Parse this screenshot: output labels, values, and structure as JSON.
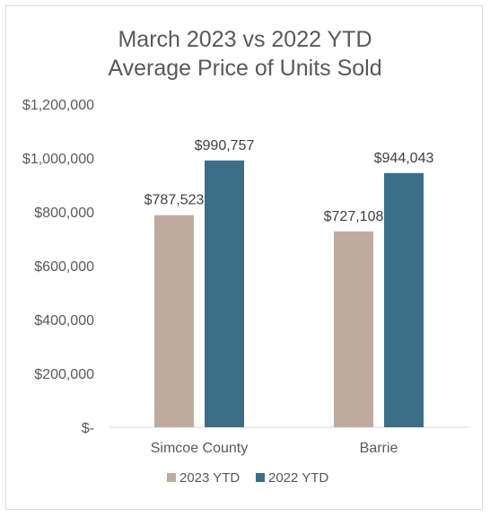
{
  "chart_data": {
    "type": "bar",
    "title_line1": "March 2023 vs 2022 YTD",
    "title_line2": "Average Price of Units Sold",
    "categories": [
      "Simcoe County",
      "Barrie"
    ],
    "series": [
      {
        "name": "2023 YTD",
        "color": "#bfab9e",
        "values": [
          787523,
          727108
        ],
        "labels": [
          "$787,523",
          "$727,108"
        ]
      },
      {
        "name": "2022 YTD",
        "color": "#3b6f88",
        "values": [
          990757,
          944043
        ],
        "labels": [
          "$990,757",
          "$944,043"
        ]
      }
    ],
    "ylim": [
      0,
      1200000
    ],
    "yticks": [
      0,
      200000,
      400000,
      600000,
      800000,
      1000000,
      1200000
    ],
    "ytick_labels": [
      "$-",
      "$200,000",
      "$400,000",
      "$600,000",
      "$800,000",
      "$1,000,000",
      "$1,200,000"
    ],
    "grid": false,
    "legend": "bottom"
  }
}
